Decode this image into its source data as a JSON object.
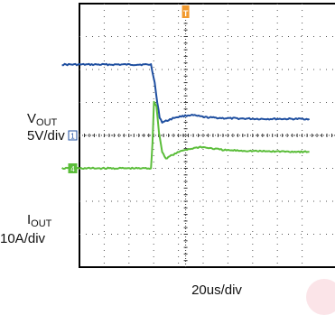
{
  "chart_data": {
    "type": "line",
    "xlabel": "20us/div",
    "x_divisions": 10,
    "y_divisions": 8,
    "trigger_marker": "T",
    "series": [
      {
        "symbol": "V",
        "subscript": "OUT",
        "scale": "5V/div",
        "channel": "1",
        "color": "#1f4fa0",
        "x": [
          -1.0,
          2.6,
          2.75,
          2.85,
          2.95,
          3.05,
          3.25,
          3.6,
          4.2,
          4.8,
          5.6,
          7.0,
          9.0
        ],
        "y": [
          2.15,
          2.15,
          1.6,
          1.0,
          0.55,
          0.4,
          0.45,
          0.55,
          0.62,
          0.55,
          0.52,
          0.5,
          0.5
        ]
      },
      {
        "symbol": "I",
        "subscript": "OUT",
        "scale": "10A/div",
        "channel": "4",
        "color": "#5bbd3a",
        "x": [
          -1.0,
          2.6,
          2.66,
          2.72,
          2.82,
          2.92,
          3.05,
          3.2,
          3.45,
          3.9,
          4.6,
          5.6,
          7.0,
          9.0
        ],
        "y": [
          -1.0,
          -1.0,
          -0.2,
          1.0,
          0.9,
          0.1,
          -0.5,
          -0.7,
          -0.6,
          -0.45,
          -0.35,
          -0.45,
          -0.48,
          -0.5
        ]
      }
    ]
  }
}
